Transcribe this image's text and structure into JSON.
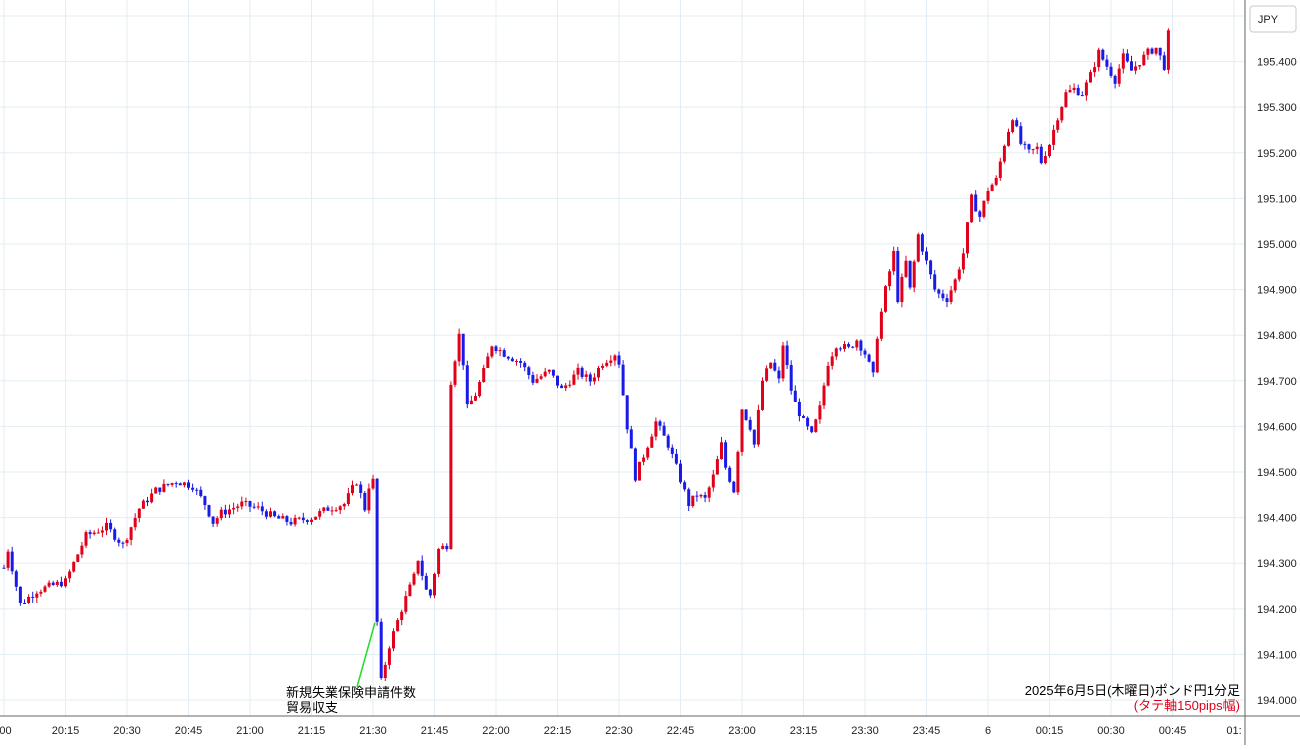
{
  "chart_data": {
    "type": "candlestick",
    "title": "2025年6月5日(木曜日)ポンド円1分足",
    "subtitle": "(タテ軸150pips幅)",
    "currency_label": "JPY",
    "ylim": [
      193.965,
      195.535
    ],
    "y_ticks": [
      "195.500",
      "195.400",
      "195.300",
      "195.200",
      "195.100",
      "195.000",
      "194.900",
      "194.800",
      "194.700",
      "194.600",
      "194.500",
      "194.400",
      "194.300",
      "194.200",
      "194.100",
      "194.000"
    ],
    "x_ticks": [
      {
        "label": ":00",
        "minute": 0
      },
      {
        "label": "20:15",
        "minute": 15
      },
      {
        "label": "20:30",
        "minute": 30
      },
      {
        "label": "20:45",
        "minute": 45
      },
      {
        "label": "21:00",
        "minute": 60
      },
      {
        "label": "21:15",
        "minute": 75
      },
      {
        "label": "21:30",
        "minute": 90
      },
      {
        "label": "21:45",
        "minute": 105
      },
      {
        "label": "22:00",
        "minute": 120
      },
      {
        "label": "22:15",
        "minute": 135
      },
      {
        "label": "22:30",
        "minute": 150
      },
      {
        "label": "22:45",
        "minute": 165
      },
      {
        "label": "23:00",
        "minute": 180
      },
      {
        "label": "23:15",
        "minute": 195
      },
      {
        "label": "23:30",
        "minute": 210
      },
      {
        "label": "23:45",
        "minute": 225
      },
      {
        "label": "6",
        "minute": 240
      },
      {
        "label": "00:15",
        "minute": 255
      },
      {
        "label": "00:30",
        "minute": 270
      },
      {
        "label": "00:45",
        "minute": 285
      },
      {
        "label": "01:",
        "minute": 300
      }
    ],
    "annotation": {
      "lines": [
        "新規失業保険申請件数",
        "貿易収支"
      ],
      "minute": 90,
      "price": 194.17
    },
    "up_color": "#e0001a",
    "down_color": "#1a1ae6",
    "keypoints": [
      [
        0,
        194.29
      ],
      [
        1,
        194.33
      ],
      [
        4,
        194.21
      ],
      [
        8,
        194.24
      ],
      [
        15,
        194.26
      ],
      [
        20,
        194.36
      ],
      [
        25,
        194.38
      ],
      [
        29,
        194.34
      ],
      [
        33,
        194.42
      ],
      [
        37,
        194.46
      ],
      [
        42,
        194.48
      ],
      [
        46,
        194.47
      ],
      [
        49,
        194.43
      ],
      [
        51,
        194.39
      ],
      [
        53,
        194.41
      ],
      [
        58,
        194.43
      ],
      [
        62,
        194.42
      ],
      [
        66,
        194.4
      ],
      [
        70,
        194.39
      ],
      [
        75,
        194.4
      ],
      [
        79,
        194.42
      ],
      [
        83,
        194.43
      ],
      [
        86,
        194.48
      ],
      [
        88,
        194.42
      ],
      [
        89,
        194.47
      ],
      [
        90,
        194.48
      ],
      [
        91,
        194.17
      ],
      [
        92,
        194.04
      ],
      [
        94,
        194.12
      ],
      [
        97,
        194.2
      ],
      [
        100,
        194.27
      ],
      [
        101,
        194.31
      ],
      [
        103,
        194.24
      ],
      [
        104,
        194.23
      ],
      [
        106,
        194.33
      ],
      [
        108,
        194.34
      ],
      [
        109,
        194.7
      ],
      [
        111,
        194.8
      ],
      [
        112,
        194.74
      ],
      [
        113,
        194.64
      ],
      [
        115,
        194.67
      ],
      [
        117,
        194.72
      ],
      [
        119,
        194.78
      ],
      [
        122,
        194.76
      ],
      [
        126,
        194.74
      ],
      [
        129,
        194.7
      ],
      [
        133,
        194.72
      ],
      [
        136,
        194.68
      ],
      [
        140,
        194.72
      ],
      [
        143,
        194.7
      ],
      [
        146,
        194.74
      ],
      [
        149,
        194.76
      ],
      [
        150,
        194.74
      ],
      [
        152,
        194.6
      ],
      [
        154,
        194.49
      ],
      [
        157,
        194.56
      ],
      [
        159,
        194.61
      ],
      [
        162,
        194.56
      ],
      [
        164,
        194.51
      ],
      [
        167,
        194.43
      ],
      [
        169,
        194.45
      ],
      [
        171,
        194.44
      ],
      [
        173,
        194.49
      ],
      [
        175,
        194.56
      ],
      [
        176,
        194.51
      ],
      [
        178,
        194.46
      ],
      [
        180,
        194.64
      ],
      [
        182,
        194.6
      ],
      [
        183,
        194.56
      ],
      [
        185,
        194.7
      ],
      [
        187,
        194.74
      ],
      [
        189,
        194.7
      ],
      [
        190,
        194.78
      ],
      [
        192,
        194.68
      ],
      [
        193,
        194.65
      ],
      [
        195,
        194.61
      ],
      [
        197,
        194.58
      ],
      [
        199,
        194.64
      ],
      [
        201,
        194.74
      ],
      [
        203,
        194.78
      ],
      [
        206,
        194.77
      ],
      [
        208,
        194.79
      ],
      [
        210,
        194.76
      ],
      [
        212,
        194.71
      ],
      [
        213,
        194.8
      ],
      [
        215,
        194.9
      ],
      [
        217,
        194.98
      ],
      [
        218,
        194.88
      ],
      [
        220,
        194.96
      ],
      [
        221,
        194.9
      ],
      [
        223,
        195.02
      ],
      [
        225,
        194.96
      ],
      [
        227,
        194.9
      ],
      [
        228,
        194.89
      ],
      [
        230,
        194.88
      ],
      [
        232,
        194.92
      ],
      [
        234,
        194.98
      ],
      [
        236,
        195.1
      ],
      [
        238,
        195.06
      ],
      [
        240,
        195.12
      ],
      [
        242,
        195.14
      ],
      [
        244,
        195.22
      ],
      [
        246,
        195.28
      ],
      [
        248,
        195.22
      ],
      [
        250,
        195.2
      ],
      [
        252,
        195.21
      ],
      [
        253,
        195.18
      ],
      [
        255,
        195.22
      ],
      [
        257,
        195.28
      ],
      [
        259,
        195.33
      ],
      [
        261,
        195.34
      ],
      [
        263,
        195.33
      ],
      [
        265,
        195.37
      ],
      [
        267,
        195.42
      ],
      [
        269,
        195.39
      ],
      [
        271,
        195.36
      ],
      [
        273,
        195.41
      ],
      [
        275,
        195.38
      ],
      [
        277,
        195.4
      ],
      [
        279,
        195.42
      ],
      [
        281,
        195.43
      ],
      [
        283,
        195.39
      ],
      [
        284,
        195.46
      ]
    ]
  }
}
